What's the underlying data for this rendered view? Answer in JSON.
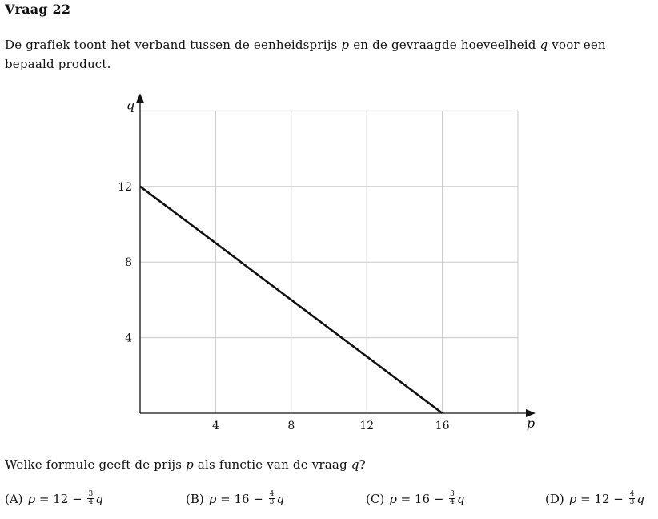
{
  "title": "Vraag 22",
  "intro": {
    "part1": "De grafiek toont het verband tussen de eenheidsprijs ",
    "var_p": "p",
    "part2": " en de gevraagde hoeveelheid ",
    "var_q": "q",
    "part3": " voor een bepaald product."
  },
  "chart_data": {
    "type": "line",
    "xlabel": "p",
    "ylabel": "q",
    "xlim": [
      0,
      20
    ],
    "ylim": [
      0,
      16
    ],
    "xticks": [
      4,
      8,
      12,
      16
    ],
    "yticks": [
      4,
      8,
      12
    ],
    "grid": true,
    "series": [
      {
        "x": [
          0,
          16
        ],
        "y": [
          12,
          0
        ]
      }
    ]
  },
  "question": {
    "part1": "Welke formule geeft de prijs ",
    "var_p": "p",
    "part2": " als functie van de vraag ",
    "var_q": "q",
    "part3": "?"
  },
  "options": [
    {
      "label": "(A)",
      "lhs": "p",
      "eq": " = 12 − ",
      "num": "3",
      "den": "4",
      "var": "q"
    },
    {
      "label": "(B)",
      "lhs": "p",
      "eq": " = 16 − ",
      "num": "4",
      "den": "3",
      "var": "q"
    },
    {
      "label": "(C)",
      "lhs": "p",
      "eq": " = 16 − ",
      "num": "3",
      "den": "4",
      "var": "q"
    },
    {
      "label": "(D)",
      "lhs": "p",
      "eq": " = 12 − ",
      "num": "4",
      "den": "3",
      "var": "q"
    }
  ]
}
